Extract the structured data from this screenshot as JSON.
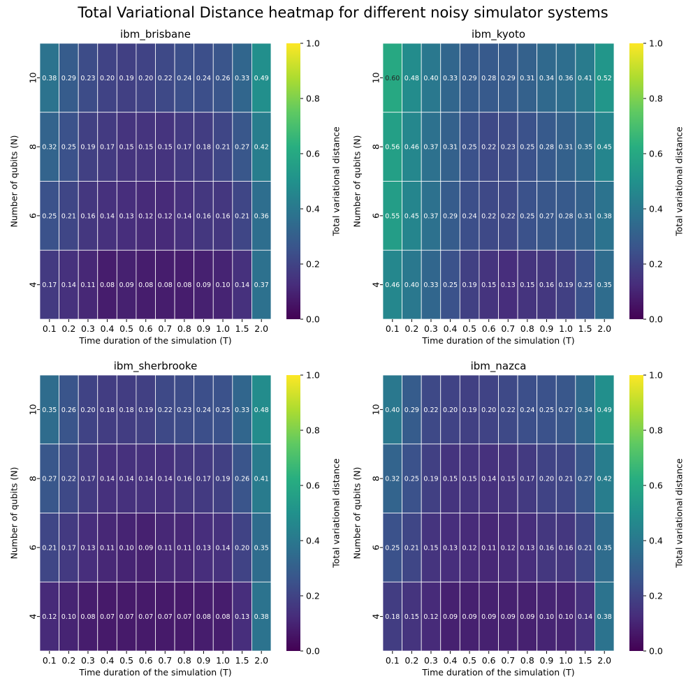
{
  "suptitle": "Total Variational Distance heatmap for different noisy simulator systems",
  "chart_data": [
    {
      "type": "heatmap",
      "title": "ibm_brisbane",
      "xlabel": "Time duration of the simulation (T)",
      "ylabel": "Number of qubits (N)",
      "colorbar_label": "Total variational distance",
      "x": [
        "0.1",
        "0.2",
        "0.3",
        "0.4",
        "0.5",
        "0.6",
        "0.7",
        "0.8",
        "0.9",
        "1.0",
        "1.5",
        "2.0"
      ],
      "y": [
        "10",
        "8",
        "6",
        "4"
      ],
      "values": [
        [
          0.38,
          0.29,
          0.23,
          0.2,
          0.19,
          0.2,
          0.22,
          0.24,
          0.24,
          0.26,
          0.33,
          0.49
        ],
        [
          0.32,
          0.25,
          0.19,
          0.17,
          0.15,
          0.15,
          0.15,
          0.17,
          0.18,
          0.21,
          0.27,
          0.42
        ],
        [
          0.25,
          0.21,
          0.16,
          0.14,
          0.13,
          0.12,
          0.12,
          0.14,
          0.16,
          0.16,
          0.21,
          0.36
        ],
        [
          0.17,
          0.14,
          0.11,
          0.08,
          0.09,
          0.08,
          0.08,
          0.08,
          0.09,
          0.1,
          0.14,
          0.37
        ]
      ],
      "vlim": [
        0.0,
        1.0
      ],
      "colorbar_ticks": [
        "0.0",
        "0.2",
        "0.4",
        "0.6",
        "0.8",
        "1.0"
      ],
      "colormap": "viridis"
    },
    {
      "type": "heatmap",
      "title": "ibm_kyoto",
      "xlabel": "Time duration of the simulation (T)",
      "ylabel": "Number of qubits (N)",
      "colorbar_label": "Total variational distance",
      "x": [
        "0.1",
        "0.2",
        "0.3",
        "0.4",
        "0.5",
        "0.6",
        "0.7",
        "0.8",
        "0.9",
        "1.0",
        "1.5",
        "2.0"
      ],
      "y": [
        "10",
        "8",
        "6",
        "4"
      ],
      "values": [
        [
          0.6,
          0.48,
          0.4,
          0.33,
          0.29,
          0.28,
          0.29,
          0.31,
          0.34,
          0.36,
          0.41,
          0.52
        ],
        [
          0.56,
          0.46,
          0.37,
          0.31,
          0.25,
          0.22,
          0.23,
          0.25,
          0.28,
          0.31,
          0.35,
          0.45
        ],
        [
          0.55,
          0.45,
          0.37,
          0.29,
          0.24,
          0.22,
          0.22,
          0.25,
          0.27,
          0.28,
          0.31,
          0.38
        ],
        [
          0.46,
          0.4,
          0.33,
          0.25,
          0.19,
          0.15,
          0.13,
          0.15,
          0.16,
          0.19,
          0.25,
          0.35
        ]
      ],
      "vlim": [
        0.0,
        1.0
      ],
      "colorbar_ticks": [
        "0.0",
        "0.2",
        "0.4",
        "0.6",
        "0.8",
        "1.0"
      ],
      "colormap": "viridis"
    },
    {
      "type": "heatmap",
      "title": "ibm_sherbrooke",
      "xlabel": "Time duration of the simulation (T)",
      "ylabel": "Number of qubits (N)",
      "colorbar_label": "Total variational distance",
      "x": [
        "0.1",
        "0.2",
        "0.3",
        "0.4",
        "0.5",
        "0.6",
        "0.7",
        "0.8",
        "0.9",
        "1.0",
        "1.5",
        "2.0"
      ],
      "y": [
        "10",
        "8",
        "6",
        "4"
      ],
      "values": [
        [
          0.35,
          0.26,
          0.2,
          0.18,
          0.18,
          0.19,
          0.22,
          0.23,
          0.24,
          0.25,
          0.33,
          0.48
        ],
        [
          0.27,
          0.22,
          0.17,
          0.14,
          0.14,
          0.14,
          0.14,
          0.16,
          0.17,
          0.19,
          0.26,
          0.41
        ],
        [
          0.21,
          0.17,
          0.13,
          0.11,
          0.1,
          0.09,
          0.11,
          0.11,
          0.13,
          0.14,
          0.2,
          0.35
        ],
        [
          0.12,
          0.1,
          0.08,
          0.07,
          0.07,
          0.07,
          0.07,
          0.07,
          0.08,
          0.08,
          0.13,
          0.38
        ]
      ],
      "vlim": [
        0.0,
        1.0
      ],
      "colorbar_ticks": [
        "0.0",
        "0.2",
        "0.4",
        "0.6",
        "0.8",
        "1.0"
      ],
      "colormap": "viridis"
    },
    {
      "type": "heatmap",
      "title": "ibm_nazca",
      "xlabel": "Time duration of the simulation (T)",
      "ylabel": "Number of qubits (N)",
      "colorbar_label": "Total variational distance",
      "x": [
        "0.1",
        "0.2",
        "0.3",
        "0.4",
        "0.5",
        "0.6",
        "0.7",
        "0.8",
        "0.9",
        "1.0",
        "1.5",
        "2.0"
      ],
      "y": [
        "10",
        "8",
        "6",
        "4"
      ],
      "values": [
        [
          0.4,
          0.29,
          0.22,
          0.2,
          0.19,
          0.2,
          0.22,
          0.24,
          0.25,
          0.27,
          0.34,
          0.49
        ],
        [
          0.32,
          0.25,
          0.19,
          0.15,
          0.15,
          0.14,
          0.15,
          0.17,
          0.2,
          0.21,
          0.27,
          0.42
        ],
        [
          0.25,
          0.21,
          0.15,
          0.13,
          0.12,
          0.11,
          0.12,
          0.13,
          0.16,
          0.16,
          0.21,
          0.35
        ],
        [
          0.18,
          0.15,
          0.12,
          0.09,
          0.09,
          0.09,
          0.09,
          0.09,
          0.1,
          0.1,
          0.14,
          0.38
        ]
      ],
      "vlim": [
        0.0,
        1.0
      ],
      "colorbar_ticks": [
        "0.0",
        "0.2",
        "0.4",
        "0.6",
        "0.8",
        "1.0"
      ],
      "colormap": "viridis"
    }
  ]
}
